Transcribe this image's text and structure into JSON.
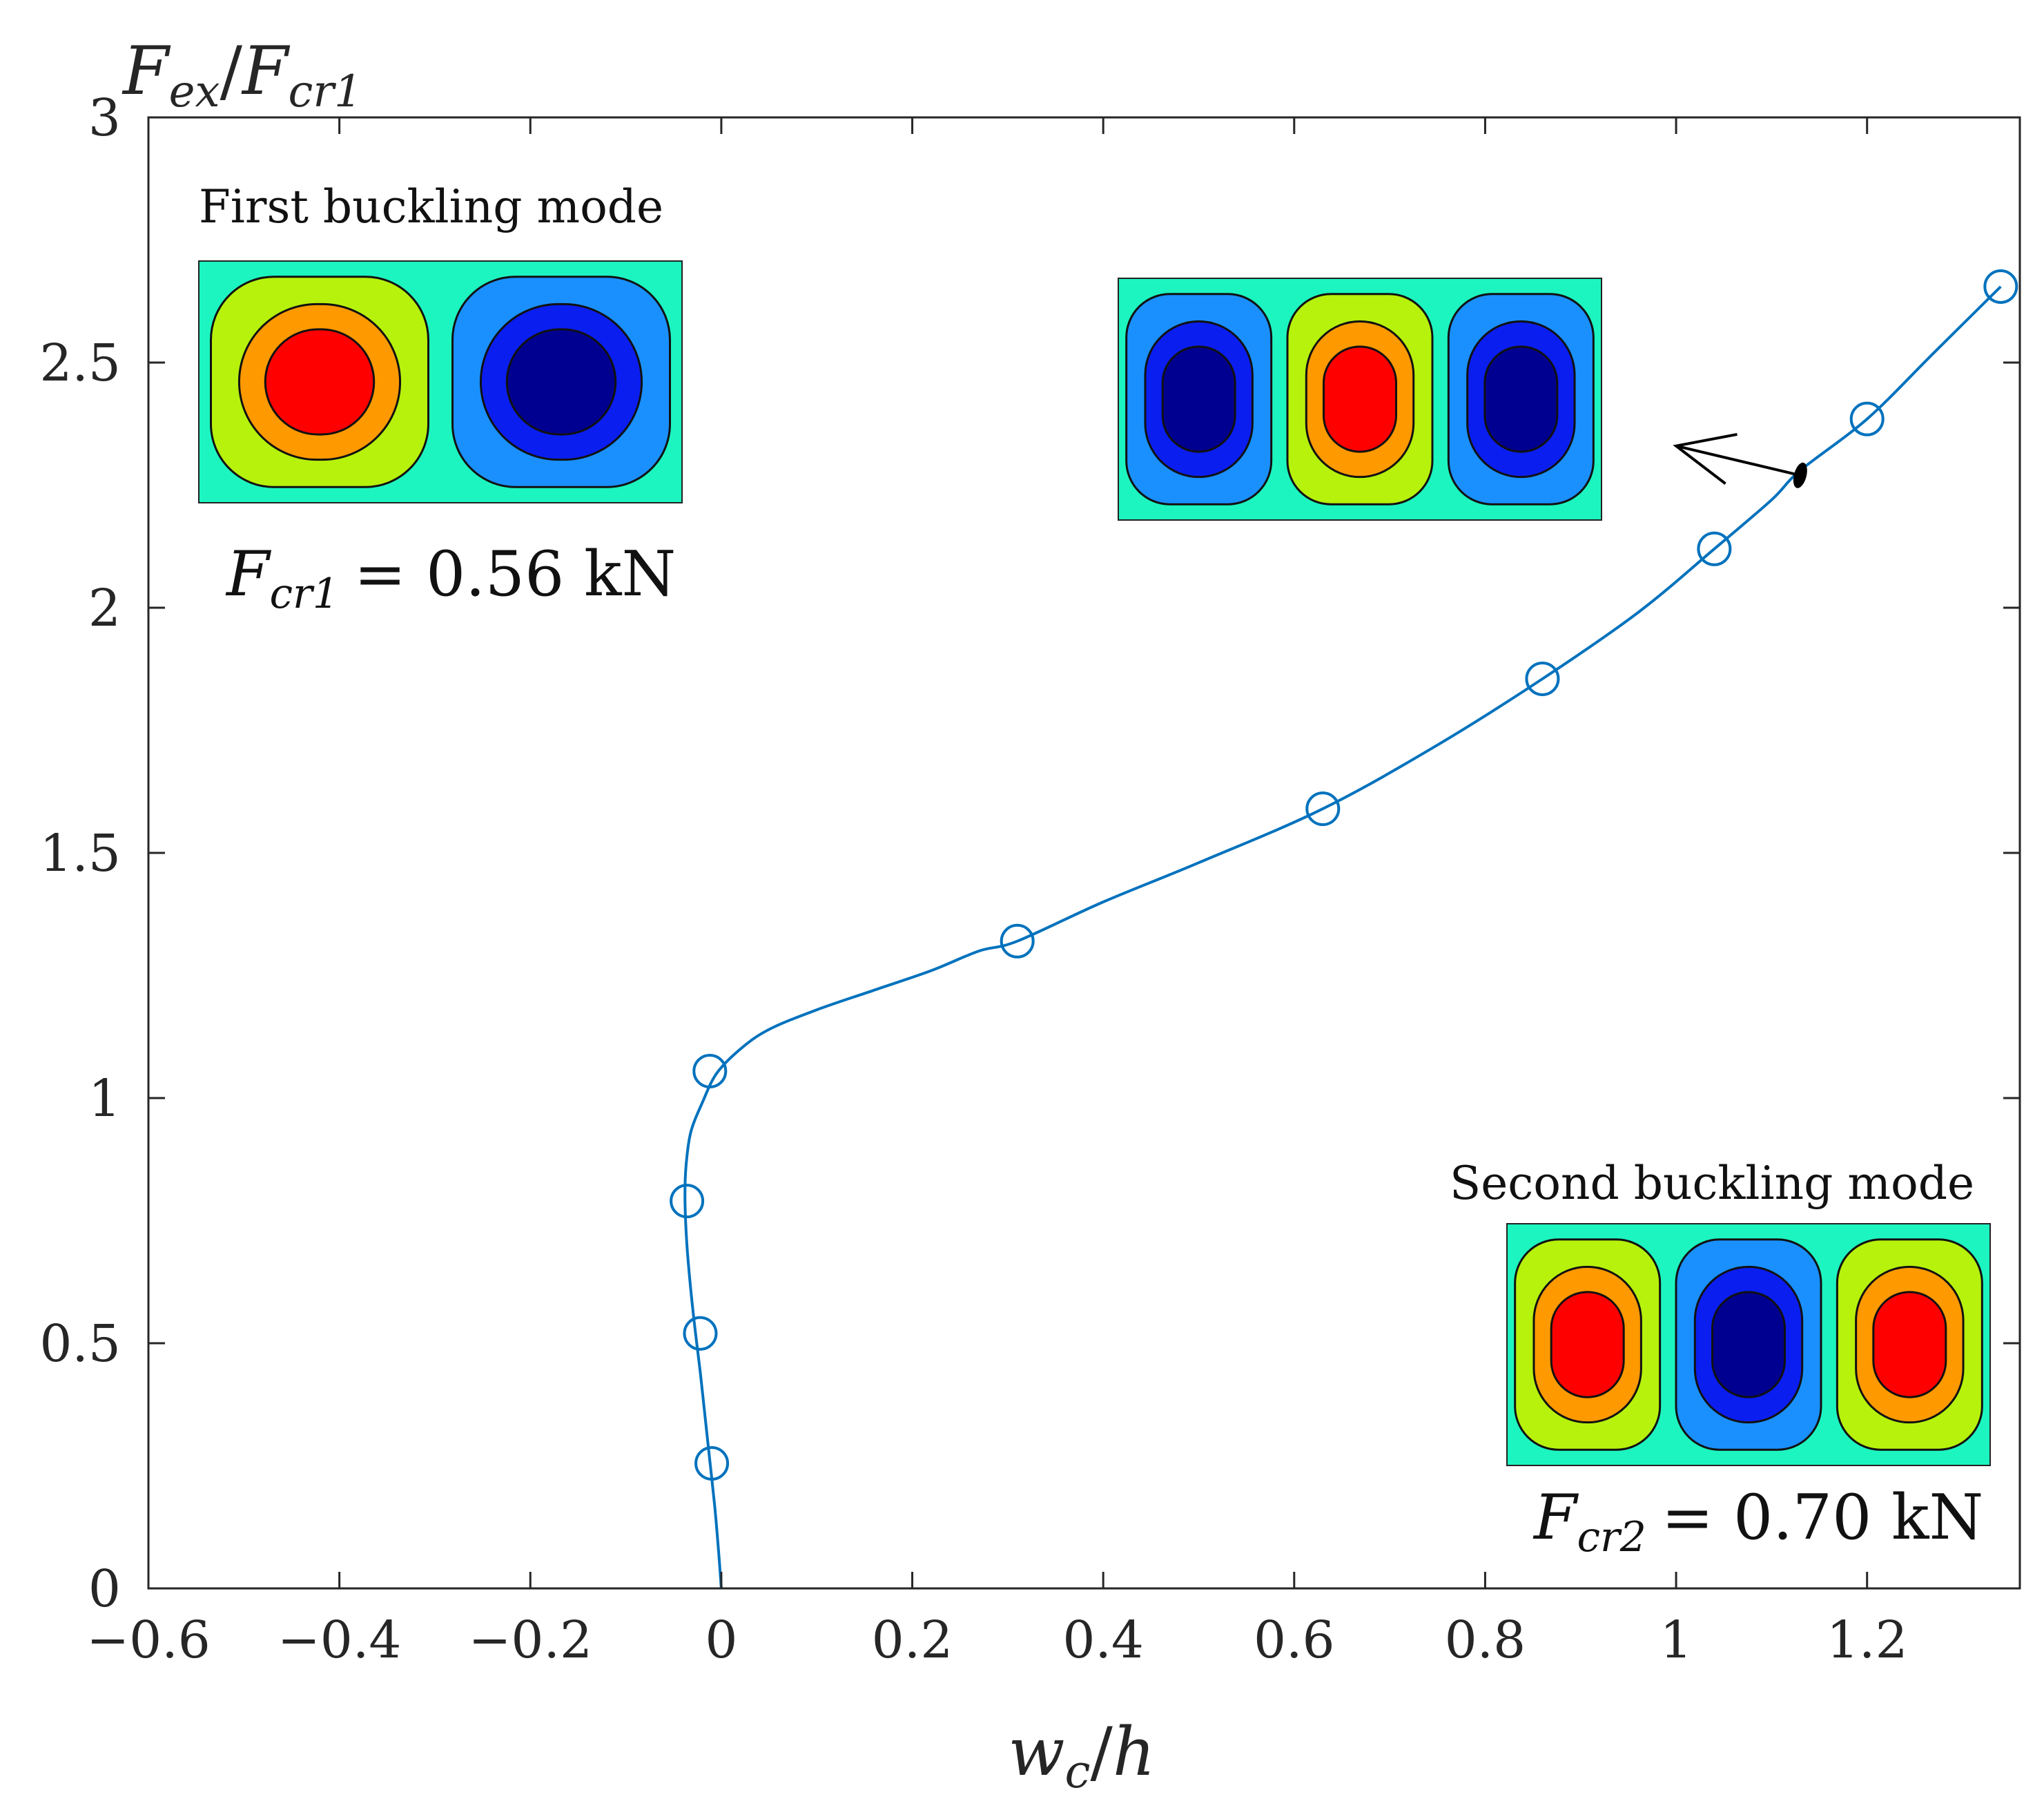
{
  "chart_data": {
    "type": "line",
    "xlabel": "w_c/h",
    "ylabel": "F_ex/F_cr1",
    "xlim": [
      -0.6,
      1.36
    ],
    "ylim": [
      0,
      3
    ],
    "xticks": [
      -0.6,
      -0.4,
      -0.2,
      0,
      0.2,
      0.4,
      0.6,
      0.8,
      1,
      1.2
    ],
    "xtick_labels": [
      "−0.6",
      "−0.4",
      "−0.2",
      "0",
      "0.2",
      "0.4",
      "0.6",
      "0.8",
      "1",
      "1.2"
    ],
    "yticks": [
      0,
      0.5,
      1,
      1.5,
      2,
      2.5,
      3
    ],
    "ytick_labels": [
      "0",
      "0.5",
      "1",
      "1.5",
      "2",
      "2.5",
      "3"
    ],
    "grid": false,
    "line_color": "#0072BD",
    "curve": {
      "x": [
        0.0,
        -0.003,
        -0.007,
        -0.012,
        -0.017,
        -0.022,
        -0.027,
        -0.032,
        -0.036,
        -0.038,
        -0.037,
        -0.032,
        -0.02,
        -0.005,
        0.02,
        0.05,
        0.1,
        0.16,
        0.22,
        0.27,
        0.31,
        0.4,
        0.5,
        0.63,
        0.75,
        0.86,
        0.96,
        1.04,
        1.1,
        1.13,
        1.2,
        1.27,
        1.34
      ],
      "y": [
        0.0,
        0.08,
        0.17,
        0.26,
        0.35,
        0.44,
        0.52,
        0.61,
        0.7,
        0.79,
        0.86,
        0.93,
        0.99,
        1.05,
        1.1,
        1.14,
        1.18,
        1.22,
        1.26,
        1.3,
        1.32,
        1.4,
        1.48,
        1.59,
        1.72,
        1.855,
        1.99,
        2.12,
        2.22,
        2.28,
        2.385,
        2.52,
        2.655
      ]
    },
    "markers": {
      "x": [
        -0.01,
        -0.022,
        -0.036,
        -0.012,
        0.31,
        0.63,
        0.86,
        1.04,
        1.2,
        1.34
      ],
      "y": [
        0.255,
        0.52,
        0.79,
        1.055,
        1.32,
        1.59,
        1.855,
        2.12,
        2.385,
        2.655
      ]
    },
    "annotation_arrow": {
      "from": [
        1.13,
        2.27
      ],
      "to": [
        1.0,
        2.33
      ]
    },
    "annotations": {
      "first_mode_title": "First buckling mode",
      "first_mode_value": "= 0.56 kN",
      "first_mode_symbol": "F",
      "first_mode_sub": "cr1",
      "second_mode_title": "Second buckling mode",
      "second_mode_value": "= 0.70 kN",
      "second_mode_symbol": "F",
      "second_mode_sub": "cr2"
    },
    "contour_colors": {
      "background": "#1DF5C0",
      "yellow_green": "#B7F20C",
      "orange": "#FF9900",
      "red": "#FF0000",
      "light_blue": "#1A90FF",
      "blue": "#0A1EF0",
      "dark_blue": "#000090"
    }
  }
}
